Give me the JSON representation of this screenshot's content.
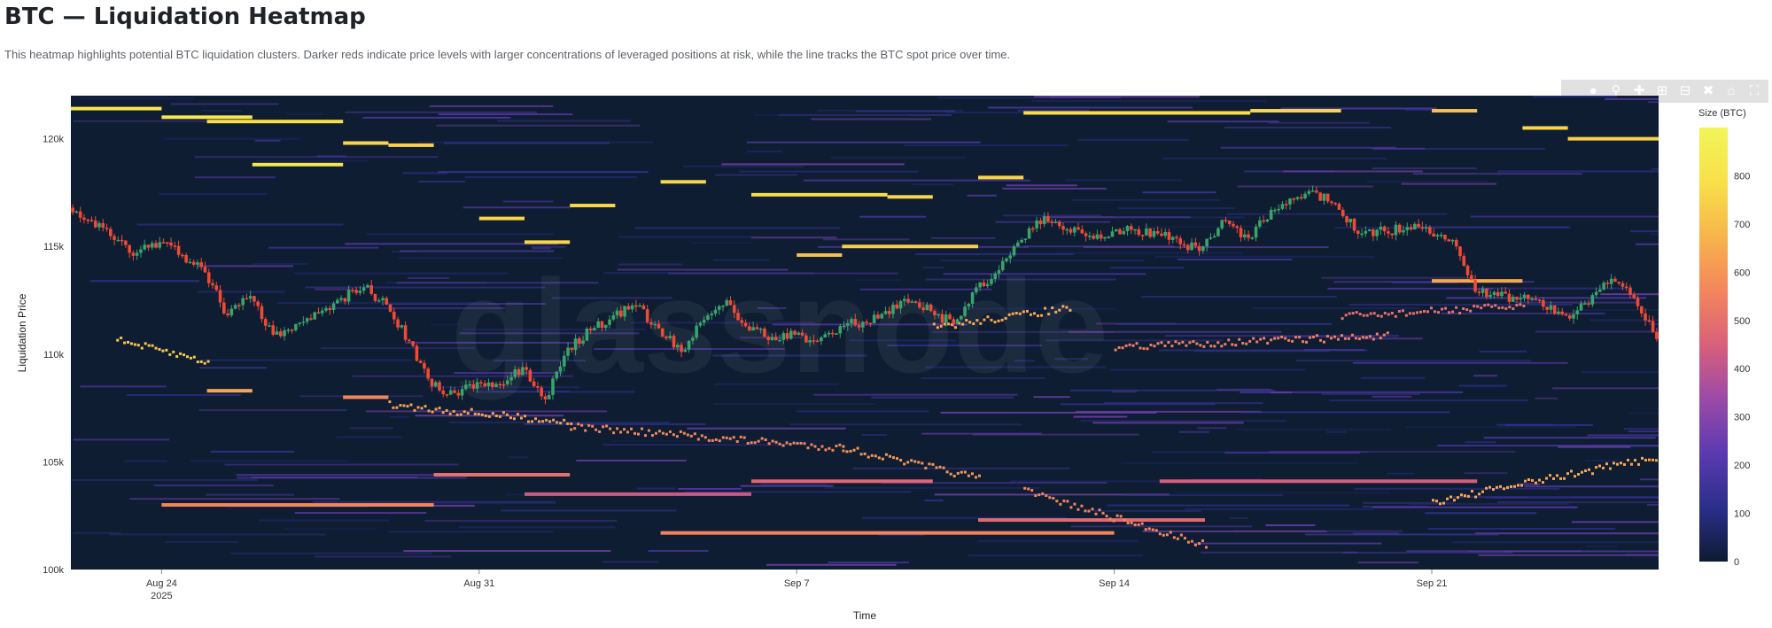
{
  "header": {
    "title": "BTC — Liquidation Heatmap",
    "subtitle": "This heatmap highlights potential BTC liquidation clusters. Darker reds indicate price levels with larger concentrations of leveraged positions at risk, while the line tracks the BTC spot price over time."
  },
  "toolbar": {
    "icons": [
      "camera-icon",
      "zoom-icon",
      "pan-icon",
      "zoom-in-icon",
      "zoom-out-icon",
      "autoscale-icon",
      "reset-axes-icon",
      "fullscreen-icon"
    ]
  },
  "chart_data": {
    "type": "heatmap",
    "title": "",
    "xlabel": "Time",
    "ylabel": "Liquidation Price",
    "x_range": [
      "2025-08-22",
      "2025-09-26"
    ],
    "ylim": [
      100000,
      122000
    ],
    "x_ticks": [
      {
        "date": "2025-08-24",
        "label": "Aug 24",
        "sublabel": "2025"
      },
      {
        "date": "2025-08-31",
        "label": "Aug 31",
        "sublabel": ""
      },
      {
        "date": "2025-09-07",
        "label": "Sep 7",
        "sublabel": ""
      },
      {
        "date": "2025-09-14",
        "label": "Sep 14",
        "sublabel": ""
      },
      {
        "date": "2025-09-21",
        "label": "Sep 21",
        "sublabel": ""
      }
    ],
    "y_ticks": [
      {
        "value": 100000,
        "label": "100k"
      },
      {
        "value": 105000,
        "label": "105k"
      },
      {
        "value": 110000,
        "label": "110k"
      },
      {
        "value": 115000,
        "label": "115k"
      },
      {
        "value": 120000,
        "label": "120k"
      }
    ],
    "colorbar": {
      "title": "Size (BTC)",
      "range": [
        0,
        900
      ],
      "ticks": [
        0,
        100,
        200,
        300,
        400,
        500,
        600,
        700,
        800
      ],
      "colorscale": [
        "#0d1b33",
        "#2b2f8a",
        "#5b3ab0",
        "#9b4aa8",
        "#d9607a",
        "#f4865c",
        "#f7b54c",
        "#f9e04a",
        "#f2f55a"
      ]
    },
    "price_series": {
      "name": "BTC spot price",
      "up_color": "#3aa36b",
      "down_color": "#ef4a36",
      "points": [
        [
          "2025-08-22",
          116800
        ],
        [
          "2025-08-22T12",
          116200
        ],
        [
          "2025-08-23",
          115300
        ],
        [
          "2025-08-23T12",
          114700
        ],
        [
          "2025-08-24",
          115200
        ],
        [
          "2025-08-24T12",
          114600
        ],
        [
          "2025-08-25",
          113800
        ],
        [
          "2025-08-25T12",
          111800
        ],
        [
          "2025-08-26",
          112700
        ],
        [
          "2025-08-26T12",
          110900
        ],
        [
          "2025-08-27",
          111400
        ],
        [
          "2025-08-27T12",
          111900
        ],
        [
          "2025-08-28",
          112600
        ],
        [
          "2025-08-28T12",
          113100
        ],
        [
          "2025-08-29",
          112300
        ],
        [
          "2025-08-29T12",
          110600
        ],
        [
          "2025-08-30",
          108500
        ],
        [
          "2025-08-30T12",
          108200
        ],
        [
          "2025-08-31",
          108700
        ],
        [
          "2025-08-31T12",
          108600
        ],
        [
          "2025-09-01",
          109400
        ],
        [
          "2025-09-01T12",
          107900
        ],
        [
          "2025-09-02",
          110300
        ],
        [
          "2025-09-02T12",
          111100
        ],
        [
          "2025-09-03",
          111800
        ],
        [
          "2025-09-03T12",
          112200
        ],
        [
          "2025-09-04",
          111200
        ],
        [
          "2025-09-04T12",
          110100
        ],
        [
          "2025-09-05",
          111600
        ],
        [
          "2025-09-05T12",
          112500
        ],
        [
          "2025-09-06",
          111100
        ],
        [
          "2025-09-06T12",
          110800
        ],
        [
          "2025-09-07",
          110900
        ],
        [
          "2025-09-07T12",
          110600
        ],
        [
          "2025-09-08",
          111300
        ],
        [
          "2025-09-08T12",
          111500
        ],
        [
          "2025-09-09",
          112000
        ],
        [
          "2025-09-09T12",
          112400
        ],
        [
          "2025-09-10",
          112000
        ],
        [
          "2025-09-10T12",
          111400
        ],
        [
          "2025-09-11",
          113100
        ],
        [
          "2025-09-11T12",
          113900
        ],
        [
          "2025-09-12",
          115300
        ],
        [
          "2025-09-12T12",
          116400
        ],
        [
          "2025-09-13",
          115800
        ],
        [
          "2025-09-13T12",
          115500
        ],
        [
          "2025-09-14",
          115700
        ],
        [
          "2025-09-14T12",
          115800
        ],
        [
          "2025-09-15",
          115600
        ],
        [
          "2025-09-15T12",
          115100
        ],
        [
          "2025-09-16",
          115000
        ],
        [
          "2025-09-16T12",
          116200
        ],
        [
          "2025-09-17",
          115400
        ],
        [
          "2025-09-17T12",
          116700
        ],
        [
          "2025-09-18",
          117200
        ],
        [
          "2025-09-18T12",
          117500
        ],
        [
          "2025-09-19",
          116700
        ],
        [
          "2025-09-19T12",
          115600
        ],
        [
          "2025-09-20",
          115700
        ],
        [
          "2025-09-20T12",
          115900
        ],
        [
          "2025-09-21",
          115600
        ],
        [
          "2025-09-21T12",
          115300
        ],
        [
          "2025-09-22",
          112900
        ],
        [
          "2025-09-22T12",
          112700
        ],
        [
          "2025-09-23",
          112600
        ],
        [
          "2025-09-23T12",
          112200
        ],
        [
          "2025-09-24",
          111800
        ],
        [
          "2025-09-24T12",
          112300
        ],
        [
          "2025-09-25",
          113500
        ],
        [
          "2025-09-25T12",
          112600
        ],
        [
          "2025-09-26",
          110700
        ]
      ]
    },
    "bands": [
      {
        "x0": "2025-08-22",
        "x1": "2025-08-24",
        "y": 121400,
        "size": 820
      },
      {
        "x0": "2025-08-24",
        "x1": "2025-08-26",
        "y": 121000,
        "size": 820
      },
      {
        "x0": "2025-08-25",
        "x1": "2025-08-28",
        "y": 120800,
        "size": 780
      },
      {
        "x0": "2025-08-26",
        "x1": "2025-08-28",
        "y": 118800,
        "size": 820
      },
      {
        "x0": "2025-08-28",
        "x1": "2025-08-29",
        "y": 119800,
        "size": 760
      },
      {
        "x0": "2025-08-29",
        "x1": "2025-08-30",
        "y": 119700,
        "size": 740
      },
      {
        "x0": "2025-08-31",
        "x1": "2025-09-01",
        "y": 116300,
        "size": 760
      },
      {
        "x0": "2025-09-01",
        "x1": "2025-09-02",
        "y": 115200,
        "size": 760
      },
      {
        "x0": "2025-09-02",
        "x1": "2025-09-03",
        "y": 116900,
        "size": 760
      },
      {
        "x0": "2025-09-04",
        "x1": "2025-09-05",
        "y": 118000,
        "size": 760
      },
      {
        "x0": "2025-09-06",
        "x1": "2025-09-09",
        "y": 117400,
        "size": 780
      },
      {
        "x0": "2025-09-09",
        "x1": "2025-09-10",
        "y": 117300,
        "size": 760
      },
      {
        "x0": "2025-09-08",
        "x1": "2025-09-11",
        "y": 115000,
        "size": 740
      },
      {
        "x0": "2025-09-07",
        "x1": "2025-09-08",
        "y": 114600,
        "size": 700
      },
      {
        "x0": "2025-09-11",
        "x1": "2025-09-12",
        "y": 118200,
        "size": 760
      },
      {
        "x0": "2025-09-12",
        "x1": "2025-09-17",
        "y": 121200,
        "size": 780
      },
      {
        "x0": "2025-09-17",
        "x1": "2025-09-19",
        "y": 121300,
        "size": 760
      },
      {
        "x0": "2025-09-23",
        "x1": "2025-09-24",
        "y": 120500,
        "size": 760
      },
      {
        "x0": "2025-09-24",
        "x1": "2025-09-26",
        "y": 120000,
        "size": 740
      },
      {
        "x0": "2025-09-21",
        "x1": "2025-09-22",
        "y": 121300,
        "size": 700
      },
      {
        "x0": "2025-09-21",
        "x1": "2025-09-23",
        "y": 113400,
        "size": 640
      },
      {
        "x0": "2025-08-25",
        "x1": "2025-08-26",
        "y": 108300,
        "size": 640
      },
      {
        "x0": "2025-08-28",
        "x1": "2025-08-29",
        "y": 108000,
        "size": 560
      },
      {
        "x0": "2025-08-24",
        "x1": "2025-08-30",
        "y": 103000,
        "size": 560
      },
      {
        "x0": "2025-08-30",
        "x1": "2025-09-02",
        "y": 104400,
        "size": 500
      },
      {
        "x0": "2025-09-04",
        "x1": "2025-09-14",
        "y": 101700,
        "size": 560
      },
      {
        "x0": "2025-09-06",
        "x1": "2025-09-10",
        "y": 104100,
        "size": 470
      },
      {
        "x0": "2025-09-11",
        "x1": "2025-09-16",
        "y": 102300,
        "size": 480
      },
      {
        "x0": "2025-09-15",
        "x1": "2025-09-22",
        "y": 104100,
        "size": 440
      },
      {
        "x0": "2025-09-01",
        "x1": "2025-09-06",
        "y": 103500,
        "size": 420
      }
    ],
    "clusters": [
      {
        "x0": "2025-08-23",
        "x1": "2025-08-25",
        "y0": 110700,
        "y1": 109700,
        "size": 720
      },
      {
        "x0": "2025-08-29",
        "x1": "2025-09-02",
        "y0": 107700,
        "y1": 106900,
        "size": 620
      },
      {
        "x0": "2025-09-02",
        "x1": "2025-09-08",
        "y0": 106700,
        "y1": 105700,
        "size": 560
      },
      {
        "x0": "2025-09-08",
        "x1": "2025-09-11",
        "y0": 105700,
        "y1": 104300,
        "size": 600
      },
      {
        "x0": "2025-09-10",
        "x1": "2025-09-13",
        "y0": 111300,
        "y1": 112200,
        "size": 640
      },
      {
        "x0": "2025-09-12",
        "x1": "2025-09-16",
        "y0": 103700,
        "y1": 101200,
        "size": 560
      },
      {
        "x0": "2025-09-14",
        "x1": "2025-09-20",
        "y0": 110400,
        "y1": 110900,
        "size": 540
      },
      {
        "x0": "2025-09-19",
        "x1": "2025-09-23",
        "y0": 111800,
        "y1": 112300,
        "size": 500
      },
      {
        "x0": "2025-09-21",
        "x1": "2025-09-26",
        "y0": 103200,
        "y1": 105300,
        "size": 640
      }
    ],
    "watermark": "glassnode"
  }
}
